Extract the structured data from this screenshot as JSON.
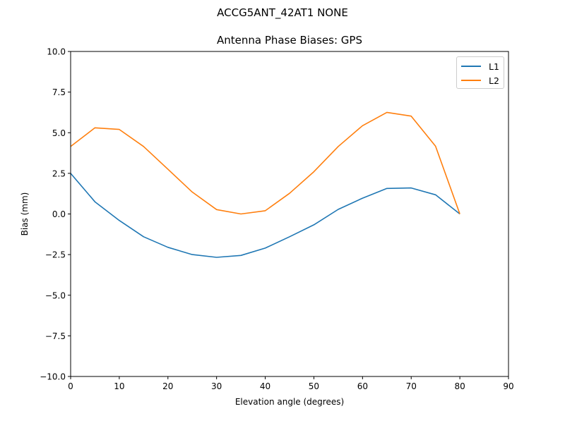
{
  "figure": {
    "suptitle": "ACCG5ANT_42AT1  NONE",
    "title": "Antenna Phase Biases: GPS"
  },
  "colors": {
    "L1": "#1f77b4",
    "L2": "#ff7f0e"
  },
  "chart_data": {
    "type": "line",
    "title": "Antenna Phase Biases: GPS",
    "suptitle": "ACCG5ANT_42AT1  NONE",
    "xlabel": "Elevation angle (degrees)",
    "ylabel": "Bias (mm)",
    "xlim": [
      0,
      90
    ],
    "ylim": [
      -10,
      10
    ],
    "xticks": [
      0,
      10,
      20,
      30,
      40,
      50,
      60,
      70,
      80,
      90
    ],
    "yticks": [
      -10.0,
      -7.5,
      -5.0,
      -2.5,
      0.0,
      2.5,
      5.0,
      7.5,
      10.0
    ],
    "xtick_labels": [
      "0",
      "10",
      "20",
      "30",
      "40",
      "50",
      "60",
      "70",
      "80",
      "90"
    ],
    "ytick_labels": [
      "−10.0",
      "−7.5",
      "−5.0",
      "−2.5",
      "0.0",
      "2.5",
      "5.0",
      "7.5",
      "10.0"
    ],
    "grid": false,
    "legend_position": "upper right",
    "x": [
      0,
      5,
      10,
      15,
      20,
      25,
      30,
      35,
      40,
      45,
      50,
      55,
      60,
      65,
      70,
      75,
      80
    ],
    "series": [
      {
        "name": "L1",
        "color": "#1f77b4",
        "values": [
          2.5,
          0.75,
          -0.4,
          -1.4,
          -2.05,
          -2.5,
          -2.67,
          -2.55,
          -2.1,
          -1.4,
          -0.67,
          0.28,
          0.97,
          1.57,
          1.6,
          1.18,
          0.0
        ]
      },
      {
        "name": "L2",
        "color": "#ff7f0e",
        "values": [
          4.15,
          5.3,
          5.2,
          4.15,
          2.75,
          1.35,
          0.27,
          0.0,
          0.2,
          1.27,
          2.6,
          4.15,
          5.43,
          6.25,
          6.02,
          4.17,
          0.0
        ]
      }
    ]
  }
}
